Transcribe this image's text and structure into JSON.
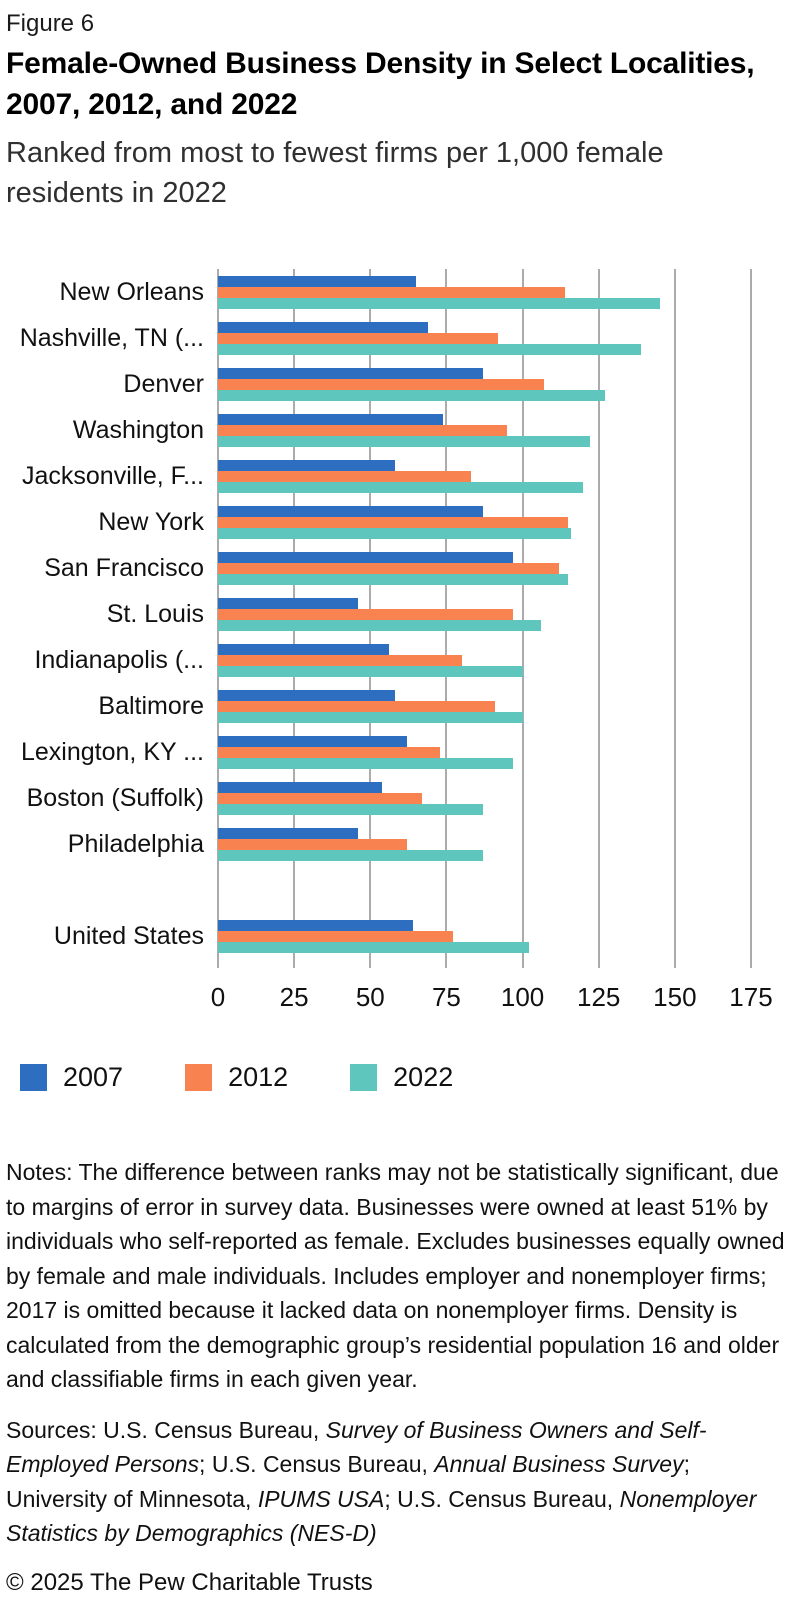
{
  "figure_label": "Figure 6",
  "title": "Female-Owned Business Density in Select Localities, 2007, 2012, and 2022",
  "subtitle": "Ranked from most to fewest firms per 1,000 female residents in 2022",
  "chart_data": {
    "type": "bar",
    "orientation": "horizontal",
    "title": "Female-Owned Business Density in Select Localities, 2007, 2012, and 2022",
    "xlabel": "Firms per 1,000 female residents",
    "categories": [
      "New Orleans",
      "Nashville, TN (...",
      "Denver",
      "Washington",
      "Jacksonville, F...",
      "New York",
      "San Francisco",
      "St. Louis",
      "Indianapolis (...",
      "Baltimore",
      "Lexington, KY ...",
      "Boston (Suffolk)",
      "Philadelphia",
      "United States"
    ],
    "gap_before_index": 13,
    "series": [
      {
        "name": "2007",
        "color": "#2d6ec0",
        "values": [
          65,
          69,
          87,
          74,
          58,
          87,
          97,
          46,
          56,
          58,
          62,
          54,
          46,
          64
        ]
      },
      {
        "name": "2012",
        "color": "#f88350",
        "values": [
          114,
          92,
          107,
          95,
          83,
          115,
          112,
          97,
          80,
          91,
          73,
          67,
          62,
          77
        ]
      },
      {
        "name": "2022",
        "color": "#5ec6bc",
        "values": [
          145,
          139,
          127,
          122,
          120,
          116,
          115,
          106,
          100,
          100,
          97,
          87,
          87,
          102
        ]
      }
    ],
    "x_ticks": [
      0,
      25,
      50,
      75,
      100,
      125,
      150,
      175
    ],
    "xlim": [
      0,
      175
    ],
    "grid": "vertical",
    "gridline_color": "#ababab",
    "legend_position": "bottom"
  },
  "notes": "Notes: The difference between ranks may not be statistically significant, due to margins of error in survey data. Businesses were owned at least 51% by individuals who self-reported as female. Excludes businesses equally owned by female and male individuals. Includes employer and nonemployer firms; 2017 is omitted because it lacked data on nonemployer firms. Density is calculated from the demographic group’s residential population 16 and older and classifiable firms in each given year.",
  "sources": {
    "segments": [
      {
        "text": "Sources: U.S. Census Bureau, ",
        "italic": false
      },
      {
        "text": "Survey of Business Owners and Self-Employed Persons",
        "italic": true
      },
      {
        "text": "; U.S. Census Bureau, ",
        "italic": false
      },
      {
        "text": "Annual Business Survey",
        "italic": true
      },
      {
        "text": "; University of Minnesota, ",
        "italic": false
      },
      {
        "text": "IPUMS USA",
        "italic": true
      },
      {
        "text": "; U.S. Census Bureau, ",
        "italic": false
      },
      {
        "text": "Nonemployer Statistics by Demographics (NES-D)",
        "italic": true
      }
    ]
  },
  "copyright": "© 2025 The Pew Charitable Trusts"
}
